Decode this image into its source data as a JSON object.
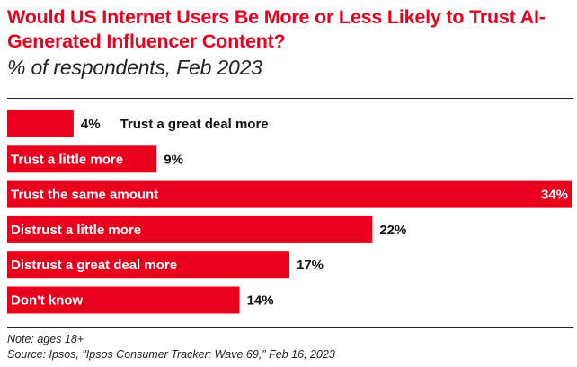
{
  "title": "Would US Internet Users Be More or Less Likely to Trust AI-Generated Influencer Content?",
  "subtitle": "% of respondents, Feb 2023",
  "note": "Note: ages 18+",
  "source": "Source: Ipsos, \"Ipsos Consumer Tracker: Wave 69,\" Feb 16, 2023",
  "colors": {
    "accent": "#e8001c",
    "text": "#111111"
  },
  "chart_data": {
    "type": "bar",
    "orientation": "horizontal",
    "categories": [
      "Trust a great deal more",
      "Trust a little more",
      "Trust the same amount",
      "Distrust a little more",
      "Distrust a great deal more",
      "Don't know"
    ],
    "values": [
      4,
      9,
      34,
      22,
      17,
      14
    ],
    "value_labels": [
      "4%",
      "9%",
      "34%",
      "22%",
      "17%",
      "14%"
    ],
    "unit": "%",
    "grid": false,
    "legend": "none"
  }
}
